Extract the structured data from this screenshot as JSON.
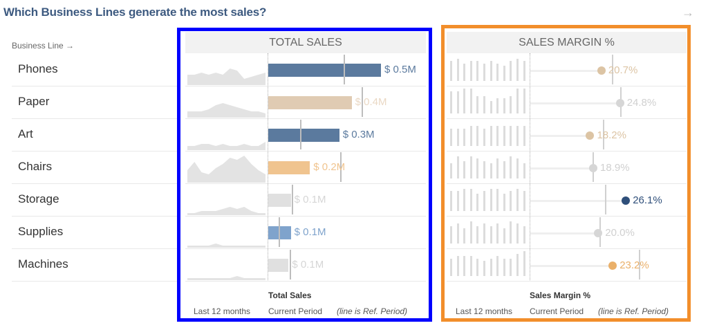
{
  "title": "Which Business Lines generate the most sales?",
  "business_line_header": "Business Line →",
  "colors": {
    "sales_box_border": "#0000ff",
    "margin_box_border": "#f28e2b",
    "dark_blue": "#5b7a9e",
    "tan": "#e0cbb3",
    "orange": "#f0c48f",
    "gray": "#e0e0e0",
    "light_blue": "#7fa3cc",
    "navy": "#2f4f7a",
    "dot_orange": "#eab06a",
    "dot_tan": "#dcc4a4",
    "dot_gray": "#d6d6d6"
  },
  "total_sales": {
    "header": "TOTAL SALES",
    "footer_title": "Total Sales",
    "footer_left": "Last 12 months",
    "footer_mid": "Current Period",
    "footer_note": "(line is Ref. Period)"
  },
  "sales_margin": {
    "header": "SALES MARGIN %",
    "footer_title": "Sales Margin %",
    "footer_left": "Last 12 months",
    "footer_mid": "Current Period",
    "footer_note": "(line is Ref. Period)"
  },
  "rows": [
    {
      "name": "Phones",
      "sales": 0.5,
      "sales_label": "$ 0.5M",
      "sales_ref": 0.335,
      "sales_color": "dark_blue",
      "label_color": "#5b7a9e",
      "margin": 20.7,
      "margin_label": "20.7%",
      "margin_ref": 23.0,
      "dot_color": "dot_tan",
      "margin_label_color": "#dcc4a4",
      "spark": [
        5,
        5,
        6,
        5,
        6,
        5,
        8,
        7,
        3,
        4,
        5,
        6
      ],
      "bars": [
        8,
        9,
        7,
        8,
        8,
        7,
        8,
        7,
        6,
        8,
        9,
        8
      ]
    },
    {
      "name": "Paper",
      "sales": 0.37,
      "sales_label": "$ 0.4M",
      "sales_ref": 0.415,
      "sales_color": "tan",
      "label_color": "#ead8c4",
      "margin": 24.8,
      "margin_label": "24.8%",
      "margin_ref": 24.9,
      "dot_color": "dot_gray",
      "margin_label_color": "#d0d0d0",
      "spark": [
        3,
        3,
        3,
        4,
        6,
        7,
        6,
        5,
        4,
        3,
        3,
        2
      ],
      "bars": [
        9,
        9,
        10,
        10,
        7,
        7,
        5,
        6,
        6,
        7,
        10,
        10
      ]
    },
    {
      "name": "Art",
      "sales": 0.315,
      "sales_label": "$ 0.3M",
      "sales_ref": 0.14,
      "sales_color": "dark_blue",
      "label_color": "#5b7a9e",
      "margin": 18.2,
      "margin_label": "18.2%",
      "margin_ref": 21.0,
      "dot_color": "dot_tan",
      "margin_label_color": "#dcc4a4",
      "spark": [
        2,
        2,
        3,
        3,
        2,
        3,
        2,
        2,
        3,
        2,
        2,
        4
      ],
      "bars": [
        7,
        7,
        7,
        8,
        8,
        7,
        8,
        8,
        8,
        8,
        8,
        8
      ]
    },
    {
      "name": "Chairs",
      "sales": 0.185,
      "sales_label": "$ 0.2M",
      "sales_ref": 0.32,
      "sales_color": "orange",
      "label_color": "#f0c48f",
      "margin": 18.9,
      "margin_label": "18.9%",
      "margin_ref": 18.7,
      "dot_color": "dot_gray",
      "margin_label_color": "#d0d0d0",
      "spark": [
        6,
        10,
        5,
        4,
        7,
        9,
        12,
        11,
        13,
        9,
        6,
        4
      ],
      "bars": [
        6,
        9,
        7,
        9,
        8,
        7,
        6,
        8,
        7,
        9,
        8,
        6
      ]
    },
    {
      "name": "Storage",
      "sales": 0.1,
      "sales_label": "$ 0.1M",
      "sales_ref": 0.105,
      "sales_color": "gray",
      "label_color": "#d6d6d6",
      "margin": 26.1,
      "margin_label": "26.1%",
      "margin_ref": 21.5,
      "dot_color": "navy",
      "margin_label_color": "#2f4f7a",
      "spark": [
        1,
        1,
        2,
        2,
        2,
        3,
        4,
        3,
        4,
        2,
        1,
        1
      ],
      "bars": [
        8,
        8,
        9,
        9,
        7,
        8,
        9,
        9,
        7,
        8,
        9,
        8
      ]
    },
    {
      "name": "Supplies",
      "sales": 0.1,
      "sales_label": "$ 0.1M",
      "sales_ref": 0.045,
      "sales_color": "light_blue",
      "label_color": "#7fa3cc",
      "margin": 20.0,
      "margin_label": "20.0%",
      "margin_ref": 20.2,
      "dot_color": "dot_gray",
      "margin_label_color": "#d0d0d0",
      "spark": [
        1,
        1,
        1,
        1,
        2,
        1,
        1,
        1,
        1,
        1,
        1,
        1
      ],
      "bars": [
        7,
        8,
        6,
        9,
        7,
        8,
        7,
        8,
        6,
        9,
        8,
        7
      ]
    },
    {
      "name": "Machines",
      "sales": 0.09,
      "sales_label": "$ 0.1M",
      "sales_ref": 0.095,
      "sales_color": "gray",
      "label_color": "#d6d6d6",
      "margin": 23.2,
      "margin_label": "23.2%",
      "margin_ref": 29.0,
      "dot_color": "dot_orange",
      "margin_label_color": "#eab06a",
      "spark": [
        1,
        1,
        1,
        1,
        1,
        1,
        1,
        2,
        1,
        1,
        1,
        1
      ],
      "bars": [
        7,
        8,
        8,
        8,
        7,
        6,
        7,
        8,
        7,
        7,
        9,
        10
      ]
    }
  ]
}
